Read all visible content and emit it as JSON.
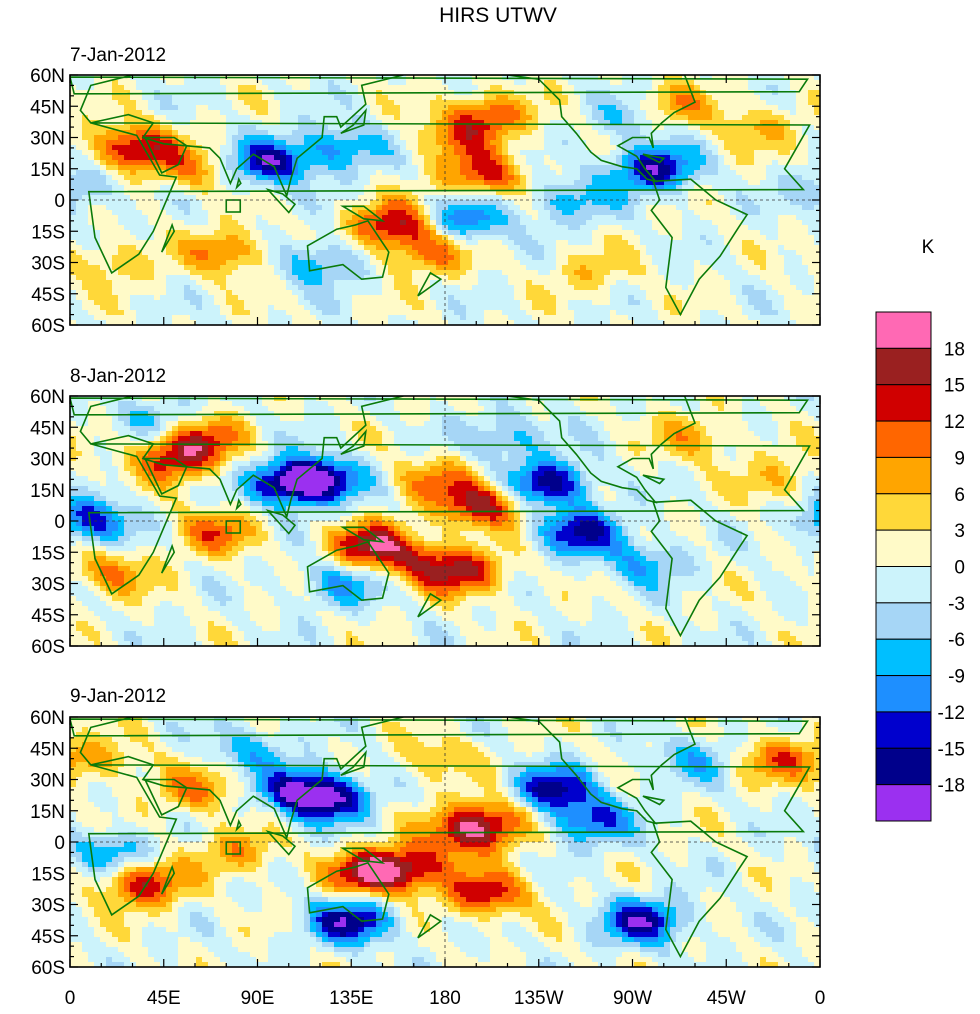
{
  "chart_data": {
    "type": "heatmap",
    "title": "HIRS UTWV",
    "units": "K",
    "x_ticks": [
      "0",
      "45E",
      "90E",
      "135E",
      "180",
      "135W",
      "90W",
      "45W",
      "0"
    ],
    "x_range": [
      0,
      360
    ],
    "y_ticks": [
      "60N",
      "45N",
      "30N",
      "15N",
      "0",
      "15S",
      "30S",
      "45S",
      "60S"
    ],
    "y_range": [
      -60,
      60
    ],
    "colorbar": {
      "labels": [
        "18",
        "15",
        "12",
        "9",
        "6",
        "3",
        "0",
        "-3",
        "-6",
        "-9",
        "-12",
        "-15",
        "-18"
      ],
      "levels": [
        18,
        15,
        12,
        9,
        6,
        3,
        0,
        -3,
        -6,
        -9,
        -12,
        -15,
        -18
      ],
      "colors": [
        "#ff69b4",
        "#9a2020",
        "#d00000",
        "#ff6600",
        "#ffa500",
        "#ffd839",
        "#fffac8",
        "#ccf3fb",
        "#a6d6f6",
        "#00bfff",
        "#1e8fff",
        "#0000cd",
        "#00008b",
        "#9b30f0"
      ]
    },
    "panels": [
      {
        "date": "7-Jan-2012",
        "features": [
          {
            "lon": 30,
            "lat": 25,
            "value": 16
          },
          {
            "lon": 60,
            "lat": 15,
            "value": 8
          },
          {
            "lon": 155,
            "lat": -12,
            "value": 15
          },
          {
            "lon": 172,
            "lat": -25,
            "value": 10
          },
          {
            "lon": 198,
            "lat": 12,
            "value": 13
          },
          {
            "lon": 200,
            "lat": 40,
            "value": 12
          },
          {
            "lon": 185,
            "lat": 30,
            "value": 7
          },
          {
            "lon": 290,
            "lat": 45,
            "value": 8
          },
          {
            "lon": 330,
            "lat": 35,
            "value": 6
          },
          {
            "lon": 75,
            "lat": -25,
            "value": 10
          },
          {
            "lon": 20,
            "lat": -30,
            "value": 6
          },
          {
            "lon": 95,
            "lat": 18,
            "value": -16
          },
          {
            "lon": 280,
            "lat": 15,
            "value": -17
          },
          {
            "lon": 130,
            "lat": 25,
            "value": -10
          },
          {
            "lon": 120,
            "lat": -30,
            "value": -9
          },
          {
            "lon": 190,
            "lat": -10,
            "value": -12
          },
          {
            "lon": 240,
            "lat": 0,
            "value": -8
          },
          {
            "lon": 5,
            "lat": 5,
            "value": -7
          },
          {
            "lon": 270,
            "lat": 40,
            "value": -6
          },
          {
            "lon": 250,
            "lat": -35,
            "value": 5
          }
        ]
      },
      {
        "date": "8-Jan-2012",
        "features": [
          {
            "lon": 50,
            "lat": 30,
            "value": 14
          },
          {
            "lon": 65,
            "lat": 40,
            "value": 10
          },
          {
            "lon": 145,
            "lat": -12,
            "value": 17
          },
          {
            "lon": 170,
            "lat": -20,
            "value": 9
          },
          {
            "lon": 198,
            "lat": 8,
            "value": 16
          },
          {
            "lon": 175,
            "lat": 20,
            "value": 8
          },
          {
            "lon": 190,
            "lat": -25,
            "value": 13
          },
          {
            "lon": 70,
            "lat": -5,
            "value": 10
          },
          {
            "lon": 20,
            "lat": -25,
            "value": 9
          },
          {
            "lon": 105,
            "lat": 18,
            "value": -16
          },
          {
            "lon": 120,
            "lat": 20,
            "value": -15
          },
          {
            "lon": 230,
            "lat": 18,
            "value": -17
          },
          {
            "lon": 245,
            "lat": -5,
            "value": -15
          },
          {
            "lon": 10,
            "lat": 0,
            "value": -14
          },
          {
            "lon": 130,
            "lat": -30,
            "value": -9
          },
          {
            "lon": 275,
            "lat": -20,
            "value": -8
          },
          {
            "lon": 300,
            "lat": 40,
            "value": 7
          },
          {
            "lon": 340,
            "lat": 20,
            "value": 6
          },
          {
            "lon": 40,
            "lat": 50,
            "value": -6
          },
          {
            "lon": 210,
            "lat": 40,
            "value": -8
          }
        ]
      },
      {
        "date": "9-Jan-2012",
        "features": [
          {
            "lon": 145,
            "lat": -15,
            "value": 18
          },
          {
            "lon": 165,
            "lat": -12,
            "value": 12
          },
          {
            "lon": 192,
            "lat": 5,
            "value": 16
          },
          {
            "lon": 205,
            "lat": 12,
            "value": 9
          },
          {
            "lon": 200,
            "lat": -25,
            "value": 14
          },
          {
            "lon": 35,
            "lat": -20,
            "value": 15
          },
          {
            "lon": 60,
            "lat": 25,
            "value": 9
          },
          {
            "lon": 80,
            "lat": -5,
            "value": 8
          },
          {
            "lon": 15,
            "lat": 40,
            "value": 7
          },
          {
            "lon": 110,
            "lat": 25,
            "value": -15
          },
          {
            "lon": 125,
            "lat": 20,
            "value": -14
          },
          {
            "lon": 232,
            "lat": 25,
            "value": -16
          },
          {
            "lon": 250,
            "lat": 10,
            "value": -12
          },
          {
            "lon": 135,
            "lat": -38,
            "value": -17
          },
          {
            "lon": 275,
            "lat": -38,
            "value": -16
          },
          {
            "lon": 300,
            "lat": 40,
            "value": -7
          },
          {
            "lon": 340,
            "lat": 40,
            "value": 10
          },
          {
            "lon": 20,
            "lat": -5,
            "value": -9
          },
          {
            "lon": 85,
            "lat": 45,
            "value": -7
          },
          {
            "lon": 175,
            "lat": 40,
            "value": 6
          }
        ]
      }
    ]
  }
}
